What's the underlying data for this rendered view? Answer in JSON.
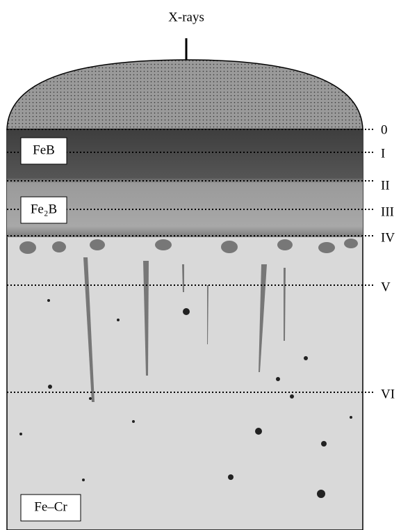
{
  "header": {
    "title": "X-rays"
  },
  "phases": [
    "FeB",
    "Fe₂B",
    "Fe–Cr"
  ],
  "levels": [
    "0",
    "I",
    "II",
    "III",
    "IV",
    "V",
    "VI"
  ]
}
